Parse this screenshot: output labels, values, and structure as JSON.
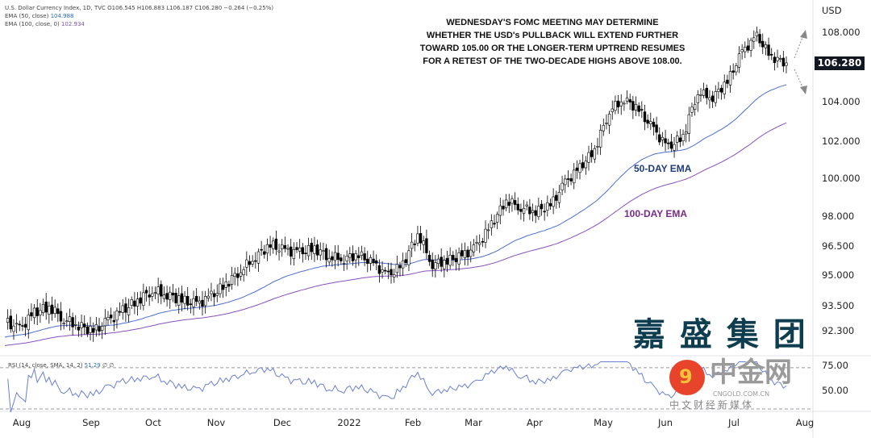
{
  "header": {
    "symbol_line": "U.S. Dollar Currency Index, 1D, TVC  O106.545  H106.883  L106.187  C106.280  −0.264 (−0.25%)",
    "ema50_label": "EMA (50, close)",
    "ema50_value": "104.988",
    "ema100_label": "EMA (100, close, 0)",
    "ema100_value": "102.934"
  },
  "annotation": [
    "WEDNESDAY'S FOMC MEETING MAY DETERMINE",
    "WHETHER THE USD's PULLBACK WILL EXTEND FURTHER",
    "TOWARD 105.00 OR THE LONGER-TERM UPTREND RESUMES",
    "FOR A RETEST OF THE TWO-DECADE HIGHS ABOVE 108.00."
  ],
  "ema_labels": {
    "ema50": "50-DAY EMA",
    "ema100": "100-DAY EMA"
  },
  "watermark": "嘉 盛 集 团",
  "logo": {
    "name": "中金网",
    "url": "CNGOLD.COM.CN",
    "sub": "中文财经新媒体"
  },
  "colors": {
    "up": "#ffffff",
    "down": "#000000",
    "ema50": "#4a6fd0",
    "ema100": "#8a4fc0",
    "rsi": "#6a7fd0",
    "ema50_text": "#1f3b7a",
    "ema100_text": "#7a2a8a"
  },
  "chart_data": {
    "type": "candlestick",
    "title": "U.S. Dollar Currency Index, 1D",
    "currency": "USD",
    "last_price": "106.280",
    "y_ticks": [
      "108.000",
      "104.000",
      "102.000",
      "100.000",
      "98.000",
      "96.500",
      "95.000",
      "93.500",
      "92.300"
    ],
    "x_ticks": [
      "Aug",
      "Sep",
      "Oct",
      "Nov",
      "Dec",
      "2022",
      "Feb",
      "Mar",
      "Apr",
      "May",
      "Jun",
      "Jul",
      "Aug"
    ],
    "weekly_closes": [
      92.8,
      92.4,
      93.2,
      93.5,
      92.9,
      92.6,
      92.3,
      92.8,
      93.3,
      93.8,
      94.3,
      94.1,
      93.8,
      93.6,
      94.0,
      94.6,
      95.3,
      96.0,
      96.6,
      96.3,
      96.2,
      96.4,
      96.0,
      95.9,
      96.1,
      95.6,
      95.0,
      95.6,
      97.2,
      95.6,
      95.8,
      96.0,
      96.5,
      97.6,
      98.9,
      98.5,
      98.3,
      98.6,
      99.8,
      100.6,
      101.6,
      103.6,
      104.2,
      103.6,
      102.6,
      101.7,
      102.3,
      104.6,
      104.3,
      105.2,
      106.9,
      107.8,
      106.6,
      106.28
    ],
    "rsi": {
      "label": "RSI (14, close, SMA, 14, 2)",
      "value": "51.29",
      "extra": "∅ ∅",
      "ticks": [
        "75.00",
        "50.00"
      ]
    }
  }
}
